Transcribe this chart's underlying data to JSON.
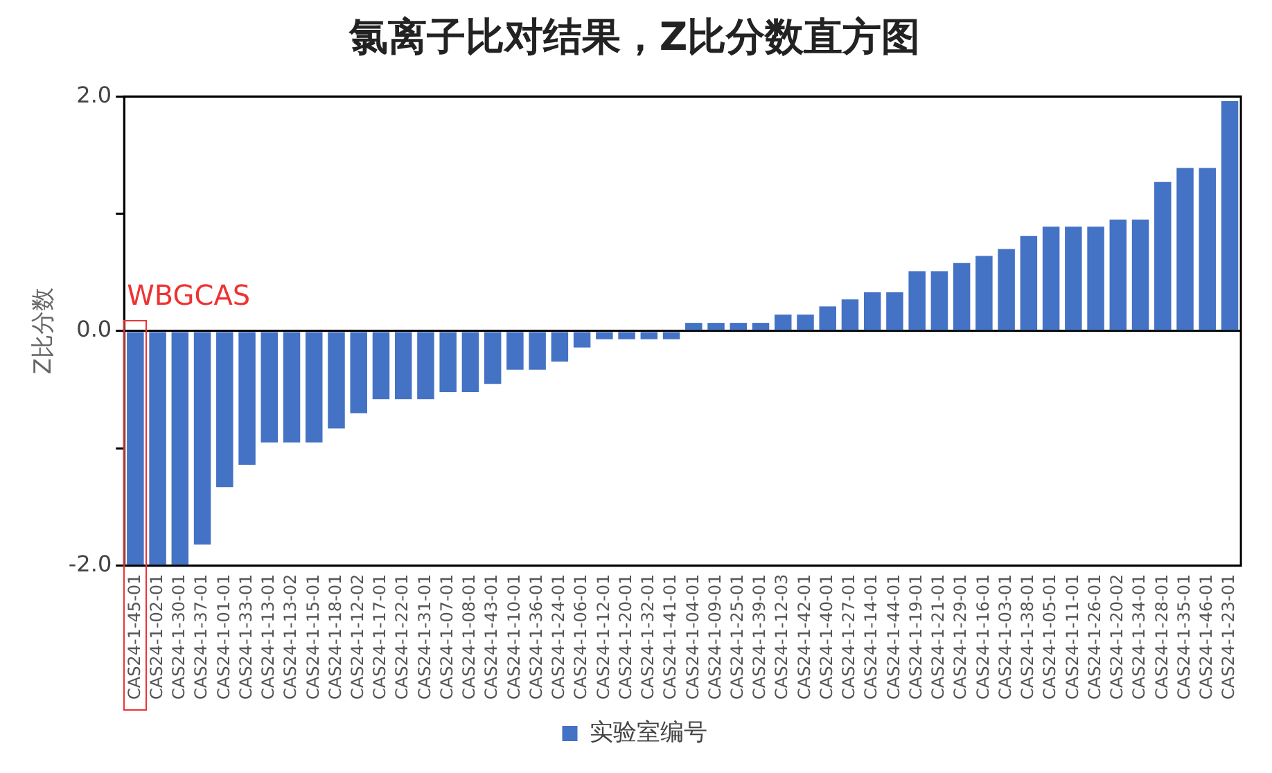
{
  "chart_data": {
    "type": "bar",
    "title": "氯离子比对结果，Z比分数直方图",
    "ylabel": "Z比分数",
    "categories": [
      "CAS24-1-45-01",
      "CAS24-1-02-01",
      "CAS24-1-30-01",
      "CAS24-1-37-01",
      "CAS24-1-01-01",
      "CAS24-1-33-01",
      "CAS24-1-13-01",
      "CAS24-1-13-02",
      "CAS24-1-15-01",
      "CAS24-1-18-01",
      "CAS24-1-12-02",
      "CAS24-1-17-01",
      "CAS24-1-22-01",
      "CAS24-1-31-01",
      "CAS24-1-07-01",
      "CAS24-1-08-01",
      "CAS24-1-43-01",
      "CAS24-1-10-01",
      "CAS24-1-36-01",
      "CAS24-1-24-01",
      "CAS24-1-06-01",
      "CAS24-1-12-01",
      "CAS24-1-20-01",
      "CAS24-1-32-01",
      "CAS24-1-41-01",
      "CAS24-1-04-01",
      "CAS24-1-09-01",
      "CAS24-1-25-01",
      "CAS24-1-39-01",
      "CAS24-1-12-03",
      "CAS24-1-42-01",
      "CAS24-1-40-01",
      "CAS24-1-27-01",
      "CAS24-1-14-01",
      "CAS24-1-44-01",
      "CAS24-1-19-01",
      "CAS24-1-21-01",
      "CAS24-1-29-01",
      "CAS24-1-16-01",
      "CAS24-1-03-01",
      "CAS24-1-38-01",
      "CAS24-1-05-01",
      "CAS24-1-11-01",
      "CAS24-1-26-01",
      "CAS24-1-20-02",
      "CAS24-1-34-01",
      "CAS24-1-28-01",
      "CAS24-1-35-01",
      "CAS24-1-46-01",
      "CAS24-1-23-01"
    ],
    "series": [
      {
        "name": "实验室编号",
        "color": "#4472c4",
        "values": [
          -2.0,
          -2.0,
          -2.0,
          -1.82,
          -1.33,
          -1.14,
          -0.95,
          -0.95,
          -0.95,
          -0.83,
          -0.7,
          -0.58,
          -0.58,
          -0.58,
          -0.52,
          -0.52,
          -0.45,
          -0.33,
          -0.33,
          -0.26,
          -0.14,
          -0.07,
          -0.07,
          -0.07,
          -0.07,
          0.07,
          0.07,
          0.07,
          0.07,
          0.14,
          0.14,
          0.21,
          0.27,
          0.33,
          0.33,
          0.51,
          0.51,
          0.58,
          0.64,
          0.7,
          0.81,
          0.89,
          0.89,
          0.89,
          0.95,
          0.95,
          1.27,
          1.39,
          1.39,
          1.96
        ]
      }
    ],
    "ylim": [
      -2,
      2
    ],
    "yticks": [
      {
        "value": -2,
        "label": "-2.0"
      },
      {
        "value": -1,
        "label": null
      },
      {
        "value": 0,
        "label": "0.0"
      },
      {
        "value": 1,
        "label": null
      },
      {
        "value": 2,
        "label": "2.0"
      }
    ],
    "grid": "y",
    "legend": "bottom",
    "annotations": [
      "WBGCAS"
    ]
  }
}
